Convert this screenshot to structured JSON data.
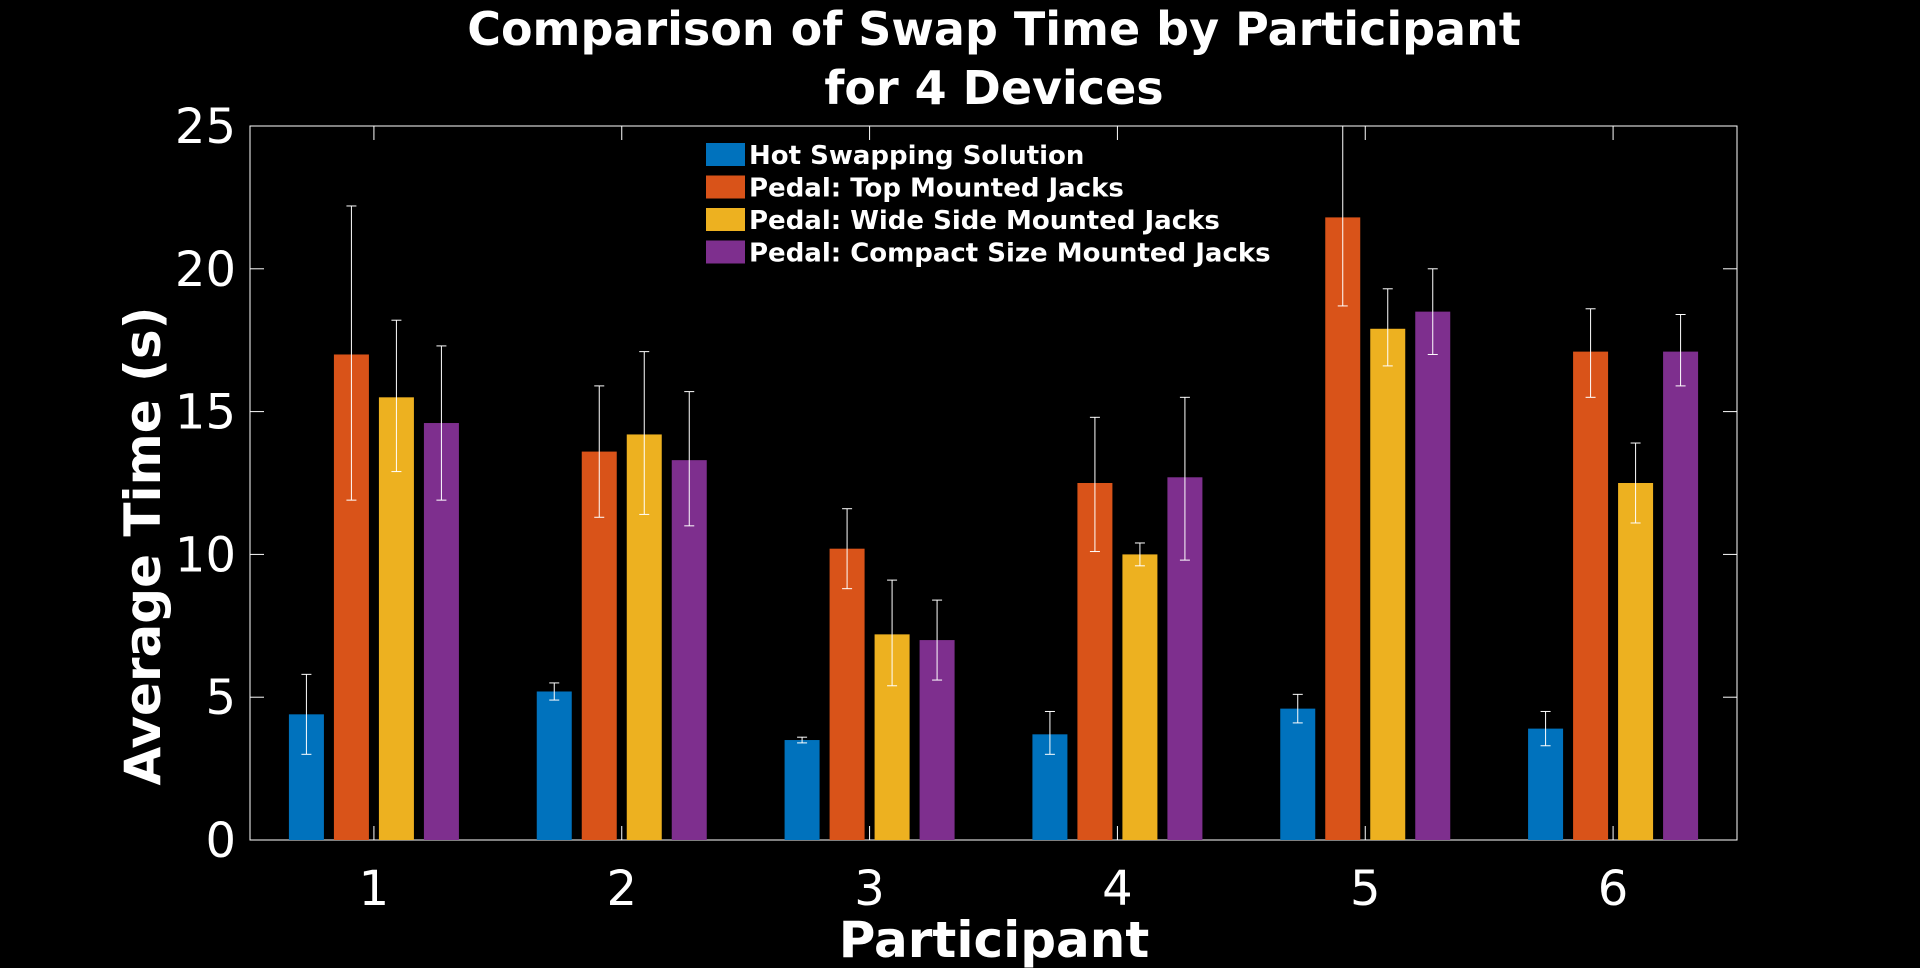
{
  "chart_data": {
    "type": "bar",
    "title": [
      "Comparison of Swap Time by Participant",
      "for 4 Devices"
    ],
    "xlabel": "Participant",
    "ylabel": "Average Time (s)",
    "categories": [
      "1",
      "2",
      "3",
      "4",
      "5",
      "6"
    ],
    "ylim": [
      0,
      25
    ],
    "yticks": [
      0,
      5,
      10,
      15,
      20,
      25
    ],
    "grid": false,
    "legend_position": "top-center",
    "series": [
      {
        "name": "Hot Swapping Solution",
        "color": "#0072bd",
        "values": [
          4.4,
          5.2,
          3.5,
          3.7,
          4.6,
          3.9
        ],
        "error_low": [
          3.0,
          4.9,
          3.4,
          3.0,
          4.1,
          3.3
        ],
        "error_high": [
          5.8,
          5.5,
          3.6,
          4.5,
          5.1,
          4.5
        ]
      },
      {
        "name": "Pedal: Top Mounted Jacks",
        "color": "#d95319",
        "values": [
          17.0,
          13.6,
          10.2,
          12.5,
          21.8,
          17.1
        ],
        "error_low": [
          11.9,
          11.3,
          8.8,
          10.1,
          18.7,
          15.5
        ],
        "error_high": [
          22.2,
          15.9,
          11.6,
          14.8,
          25.0,
          18.6
        ]
      },
      {
        "name": "Pedal: Wide Side Mounted Jacks",
        "color": "#edb120",
        "values": [
          15.5,
          14.2,
          7.2,
          10.0,
          17.9,
          12.5
        ],
        "error_low": [
          12.9,
          11.4,
          5.4,
          9.6,
          16.6,
          11.1
        ],
        "error_high": [
          18.2,
          17.1,
          9.1,
          10.4,
          19.3,
          13.9
        ]
      },
      {
        "name": "Pedal: Compact Size Mounted Jacks",
        "color": "#7e2f8e",
        "values": [
          14.6,
          13.3,
          7.0,
          12.7,
          18.5,
          17.1
        ],
        "error_low": [
          11.9,
          11.0,
          5.6,
          9.8,
          17.0,
          15.9
        ],
        "error_high": [
          17.3,
          15.7,
          8.4,
          15.5,
          20.0,
          18.4
        ]
      }
    ]
  }
}
